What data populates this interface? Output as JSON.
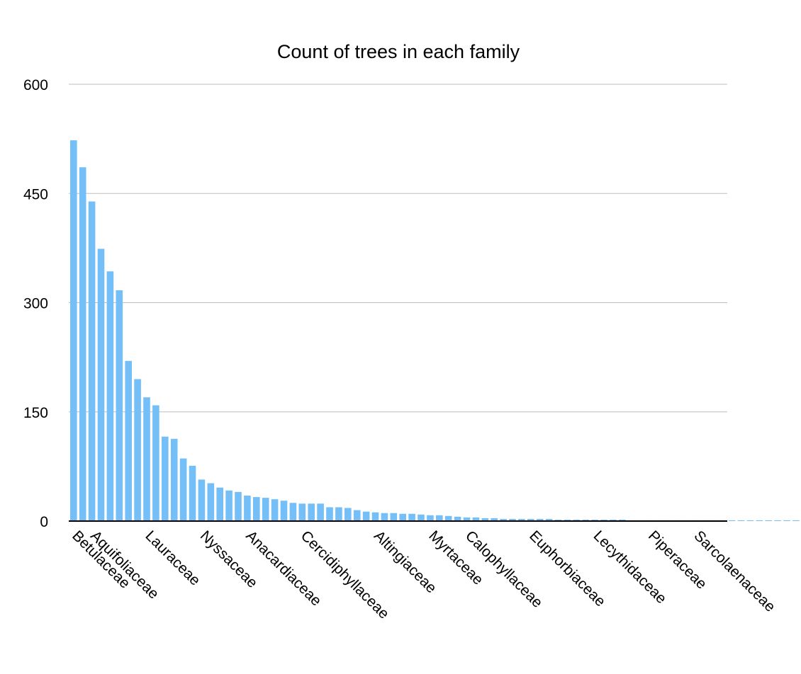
{
  "chart_data": {
    "type": "bar",
    "title": "Count of trees in each family",
    "xlabel": "",
    "ylabel": "",
    "ylim": [
      0,
      600
    ],
    "yticks": [
      0,
      150,
      300,
      450,
      600
    ],
    "grid": true,
    "legend": "none",
    "colors": {
      "bar": "#74bff8",
      "grid": "#bdbdbd",
      "axis": "#000000"
    },
    "labeled_categories": [
      "Betulaceae",
      "Aquifoliaceae",
      "Lauraceae",
      "Nyssaceae",
      "Anacardiaceae",
      "Cercidiphyllaceae",
      "Altingiaceae",
      "Myrtaceae",
      "Calophyllaceae",
      "Euphorbiaceae",
      "Lecythidaceae",
      "Piperaceae",
      "Sarcolaenaceae"
    ],
    "labeled_indices": [
      0,
      2,
      8,
      14,
      19,
      25,
      33,
      39,
      43,
      50,
      57,
      63,
      68
    ],
    "values": [
      523,
      486,
      439,
      374,
      343,
      317,
      220,
      195,
      170,
      159,
      116,
      113,
      86,
      76,
      57,
      52,
      46,
      42,
      40,
      35,
      33,
      32,
      30,
      28,
      25,
      24,
      24,
      24,
      19,
      19,
      18,
      15,
      13,
      12,
      11,
      11,
      10,
      10,
      9,
      8,
      8,
      7,
      6,
      5,
      5,
      4,
      4,
      3,
      3,
      3,
      3,
      3,
      3,
      2,
      2,
      2,
      2,
      2,
      2,
      2,
      2,
      1,
      1,
      1,
      1,
      1,
      1,
      1,
      1,
      1,
      1,
      1,
      1,
      1,
      1,
      1,
      1,
      1,
      1,
      1,
      1,
      1,
      1,
      1
    ]
  }
}
